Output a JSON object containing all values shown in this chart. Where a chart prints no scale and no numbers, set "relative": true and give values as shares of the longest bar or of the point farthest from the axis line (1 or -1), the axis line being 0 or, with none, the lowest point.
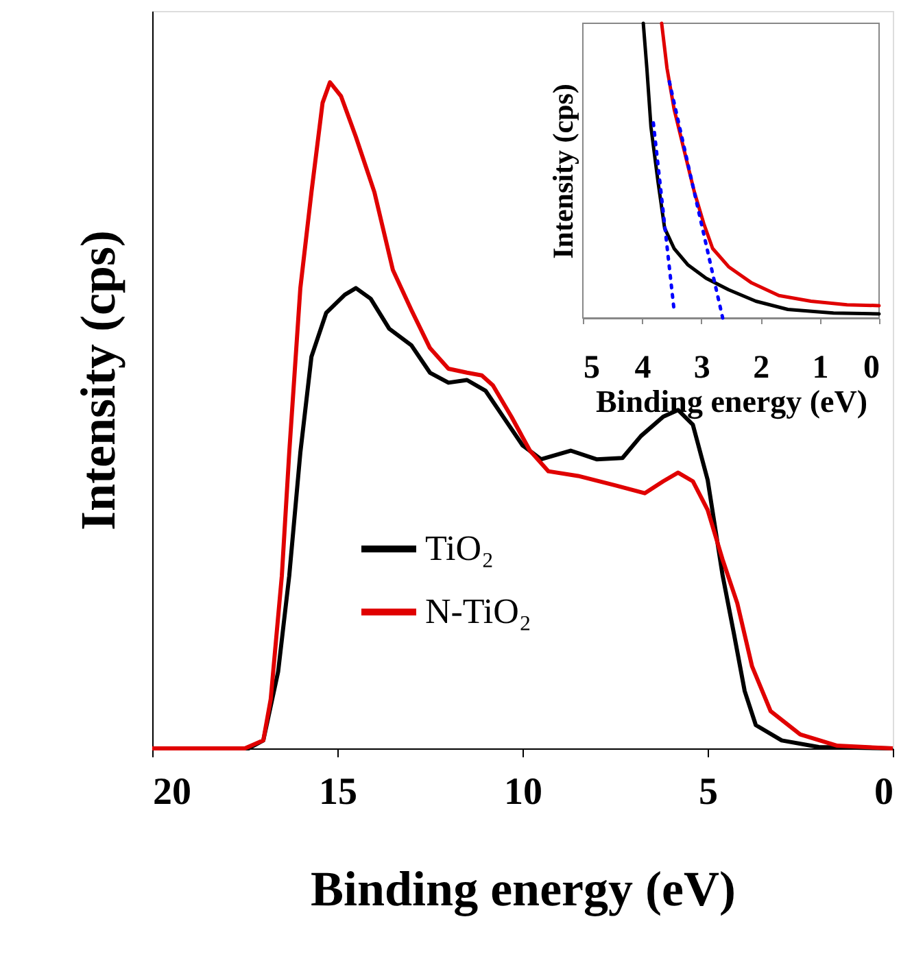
{
  "chart_data": [
    {
      "type": "line",
      "xlabel": "Binding energy (eV)",
      "ylabel": "Intensity (cps)",
      "relative": true,
      "xlim": [
        20,
        0
      ],
      "xticks": [
        20,
        15,
        10,
        5,
        0
      ],
      "legend": "left",
      "series": [
        {
          "name": "TiO₂",
          "color": "#000000",
          "x": [
            20,
            17.4,
            17,
            16.6,
            16.3,
            16,
            15.7,
            15.3,
            14.8,
            14.5,
            14.1,
            13.6,
            13,
            12.5,
            12,
            11.5,
            11,
            10.5,
            10,
            9.5,
            8.7,
            8,
            7.3,
            6.8,
            6.2,
            5.8,
            5.4,
            5,
            4.6,
            4.3,
            4,
            3.7,
            3,
            2,
            0
          ],
          "values": [
            0,
            0,
            0.012,
            0.115,
            0.259,
            0.444,
            0.588,
            0.654,
            0.681,
            0.691,
            0.675,
            0.63,
            0.605,
            0.564,
            0.549,
            0.553,
            0.537,
            0.496,
            0.455,
            0.434,
            0.447,
            0.434,
            0.436,
            0.469,
            0.498,
            0.508,
            0.486,
            0.403,
            0.261,
            0.175,
            0.086,
            0.035,
            0.012,
            0.002,
            0
          ]
        },
        {
          "name": "N-TiO₂",
          "color": "#e00000",
          "x": [
            20,
            17.5,
            17,
            16.8,
            16.5,
            16.3,
            16,
            15.7,
            15.4,
            15.2,
            14.9,
            14.5,
            14,
            13.5,
            13,
            12.5,
            12,
            11.5,
            11.1,
            10.8,
            10.3,
            9.8,
            9.3,
            8.5,
            7.5,
            6.7,
            6.2,
            5.8,
            5.4,
            5,
            4.6,
            4.2,
            3.8,
            3.3,
            2.5,
            1.5,
            0
          ],
          "values": [
            0,
            0,
            0.012,
            0.074,
            0.259,
            0.444,
            0.691,
            0.835,
            0.969,
            1,
            0.979,
            0.918,
            0.835,
            0.718,
            0.658,
            0.601,
            0.57,
            0.564,
            0.56,
            0.545,
            0.498,
            0.447,
            0.416,
            0.409,
            0.395,
            0.383,
            0.401,
            0.414,
            0.401,
            0.358,
            0.284,
            0.218,
            0.123,
            0.056,
            0.021,
            0.004,
            0
          ]
        }
      ]
    },
    {
      "type": "line",
      "xlabel": "Binding energy (eV)",
      "ylabel": "Intensity (cps)",
      "relative": true,
      "xlim": [
        5,
        0
      ],
      "xticks": [
        5,
        4,
        3,
        2,
        1,
        0
      ],
      "series": [
        {
          "color": "#000000",
          "x": [
            3.98,
            3.92,
            3.85,
            3.73,
            3.62,
            3.46,
            3.23,
            2.92,
            2.54,
            2.08,
            1.54,
            0.77,
            0
          ],
          "values": [
            1,
            0.848,
            0.647,
            0.46,
            0.305,
            0.236,
            0.181,
            0.135,
            0.096,
            0.057,
            0.029,
            0.017,
            0.014
          ]
        },
        {
          "color": "#e00000",
          "x": [
            3.67,
            3.58,
            3.46,
            3.31,
            3.12,
            2.96,
            2.81,
            2.54,
            2.15,
            1.69,
            1.15,
            0.54,
            0
          ],
          "values": [
            1,
            0.848,
            0.709,
            0.585,
            0.429,
            0.321,
            0.236,
            0.174,
            0.119,
            0.076,
            0.057,
            0.045,
            0.042
          ]
        },
        {
          "color": "#0000ff",
          "line_style": "dotted",
          "x": [
            3.81,
            3.46
          ],
          "values": [
            0.662,
            0.026
          ]
        },
        {
          "color": "#0000ff",
          "line_style": "dotted",
          "x": [
            3.54,
            2.64
          ],
          "values": [
            0.802,
            0
          ]
        }
      ]
    }
  ]
}
